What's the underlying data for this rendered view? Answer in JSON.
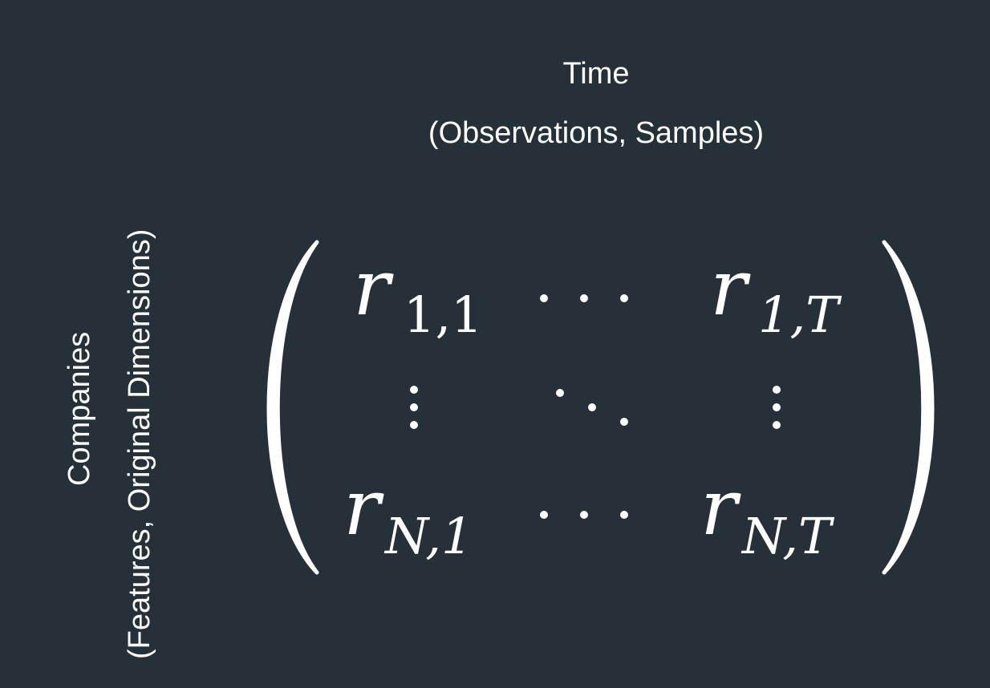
{
  "column_axis": {
    "title": "Time",
    "subtitle": "(Observations, Samples)"
  },
  "row_axis": {
    "title": "Companies",
    "subtitle": "(Features, Original Dimensions)"
  },
  "matrix": {
    "symbol": "r",
    "top_left_sub": "1,1",
    "top_right_sub": "1,T",
    "bottom_left_sub": "N,1",
    "bottom_right_sub": "N,T"
  },
  "colors": {
    "background": "#263038",
    "foreground": "#ffffff"
  }
}
